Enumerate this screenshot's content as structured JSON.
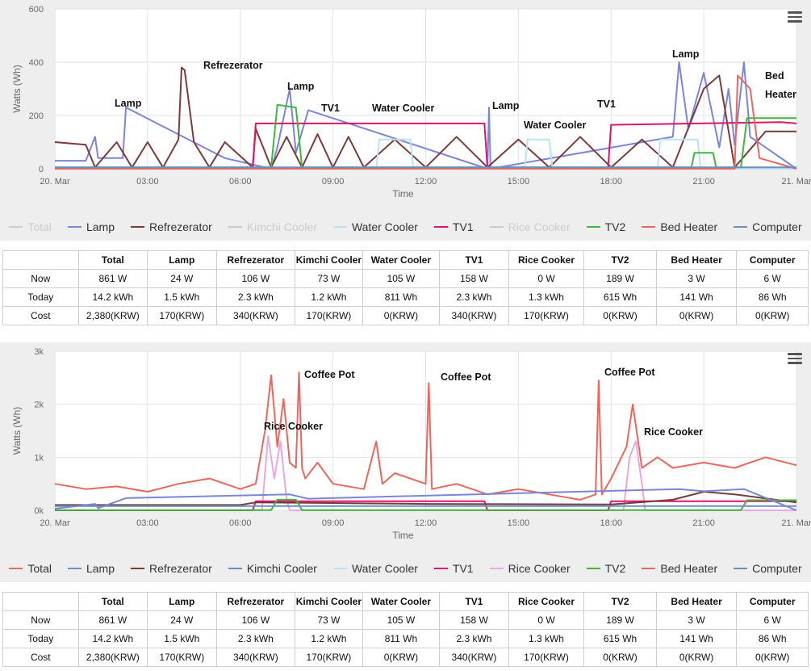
{
  "charts": [
    {
      "ylabel": "Watts (Wh)",
      "xlabel": "Time",
      "y_ticks": [
        "600",
        "400",
        "200",
        "0"
      ],
      "x_ticks": [
        "20. Mar",
        "03:00",
        "06:00",
        "09:00",
        "12:00",
        "15:00",
        "18:00",
        "21:00",
        "21. Mar"
      ],
      "annotations": [
        "Lamp",
        "Refrezerator",
        "Lamp",
        "TV1",
        "Water Cooler",
        "Lamp",
        "Water Cooler",
        "TV1",
        "Lamp",
        "Bed",
        "Heater"
      ],
      "legend": [
        {
          "label": "Total",
          "color": "#cccccc",
          "hidden": true
        },
        {
          "label": "Lamp",
          "color": "#7b86d6",
          "hidden": false
        },
        {
          "label": "Refrezerator",
          "color": "#7b3b3b",
          "hidden": false
        },
        {
          "label": "Kimchi Cooler",
          "color": "#cccccc",
          "hidden": true
        },
        {
          "label": "Water Cooler",
          "color": "#b9e3f0",
          "hidden": false
        },
        {
          "label": "TV1",
          "color": "#e0126b",
          "hidden": false
        },
        {
          "label": "Rice Cooker",
          "color": "#cccccc",
          "hidden": true
        },
        {
          "label": "TV2",
          "color": "#3cb83c",
          "hidden": false
        },
        {
          "label": "Bed Heater",
          "color": "#e8675e",
          "hidden": false
        },
        {
          "label": "Computer",
          "color": "#6a8fbf",
          "hidden": false
        }
      ]
    },
    {
      "ylabel": "Watts (Wh)",
      "xlabel": "Time",
      "y_ticks": [
        "3k",
        "2k",
        "1k",
        "0k"
      ],
      "x_ticks": [
        "20. Mar",
        "03:00",
        "06:00",
        "09:00",
        "12:00",
        "15:00",
        "18:00",
        "21:00",
        "21. Mar"
      ],
      "annotations": [
        "Coffee Pot",
        "Rice Cooker",
        "Coffee Pot",
        "Coffee Pot",
        "Rice Cooker"
      ],
      "legend": [
        {
          "label": "Total",
          "color": "#e8675e",
          "hidden": false
        },
        {
          "label": "Lamp",
          "color": "#7b86d6",
          "hidden": false
        },
        {
          "label": "Refrezerator",
          "color": "#7b3b3b",
          "hidden": false
        },
        {
          "label": "Kimchi Cooler",
          "color": "#6a8fbf",
          "hidden": false
        },
        {
          "label": "Water Cooler",
          "color": "#b9e3f0",
          "hidden": false
        },
        {
          "label": "TV1",
          "color": "#e0126b",
          "hidden": false
        },
        {
          "label": "Rice Cooker",
          "color": "#e8a8e0",
          "hidden": false
        },
        {
          "label": "TV2",
          "color": "#3cb83c",
          "hidden": false
        },
        {
          "label": "Bed Heater",
          "color": "#e8675e",
          "hidden": false
        },
        {
          "label": "Computer",
          "color": "#6a8fbf",
          "hidden": false
        }
      ]
    }
  ],
  "table": {
    "headers": [
      "",
      "Total",
      "Lamp",
      "Refrezerator",
      "Kimchi Cooler",
      "Water Cooler",
      "TV1",
      "Rice Cooker",
      "TV2",
      "Bed Heater",
      "Computer"
    ],
    "rows": [
      [
        "Now",
        "861 W",
        "24 W",
        "106 W",
        "73 W",
        "105 W",
        "158 W",
        "0 W",
        "189 W",
        "3 W",
        "6 W"
      ],
      [
        "Today",
        "14.2 kWh",
        "1.5 kWh",
        "2.3 kWh",
        "1.2 kWh",
        "811 Wh",
        "2.3 kWh",
        "1.3 kWh",
        "615 Wh",
        "141 Wh",
        "86 Wh"
      ],
      [
        "Cost",
        "2,380(KRW)",
        "170(KRW)",
        "340(KRW)",
        "170(KRW)",
        "0(KRW)",
        "340(KRW)",
        "170(KRW)",
        "0(KRW)",
        "0(KRW)",
        "0(KRW)"
      ]
    ]
  },
  "chart_data": [
    {
      "type": "line",
      "ylabel": "Watts (Wh)",
      "xlabel": "Time",
      "x_unit": "hours since 20. Mar 00:00",
      "xlim": [
        0,
        24
      ],
      "ylim": [
        0,
        600
      ],
      "series": [
        {
          "name": "Lamp",
          "color": "#7b86d6",
          "x": [
            0,
            1,
            1.3,
            1.4,
            2.2,
            2.3,
            5.5,
            7.0,
            7.2,
            7.6,
            7.8,
            8.2,
            14.0,
            14.05,
            14.1,
            20.0,
            20.2,
            20.5,
            21.0,
            21.5,
            21.8,
            22.0,
            22.3,
            22.5,
            24
          ],
          "y": [
            30,
            30,
            120,
            40,
            40,
            230,
            40,
            0,
            80,
            300,
            60,
            220,
            0,
            230,
            0,
            120,
            400,
            150,
            360,
            80,
            300,
            90,
            400,
            120,
            0
          ]
        },
        {
          "name": "Refrezerator",
          "color": "#7b3b3b",
          "x": [
            0,
            1.0,
            1.3,
            2.0,
            2.5,
            3.0,
            3.5,
            4.0,
            4.1,
            4.2,
            4.5,
            5.0,
            5.5,
            6.4,
            6.5,
            7.0,
            7.5,
            8.0,
            8.5,
            9.0,
            9.5,
            10.0,
            11.0,
            12.0,
            13.0,
            14.0,
            15.0,
            16.0,
            17.0,
            18.0,
            19.0,
            20.0,
            21.0,
            21.5,
            22.0,
            23.0,
            24
          ],
          "y": [
            100,
            90,
            5,
            100,
            5,
            100,
            5,
            110,
            380,
            370,
            100,
            5,
            100,
            5,
            150,
            5,
            120,
            5,
            130,
            5,
            120,
            5,
            110,
            5,
            120,
            5,
            110,
            5,
            120,
            5,
            110,
            5,
            300,
            350,
            5,
            140,
            140
          ]
        },
        {
          "name": "Water Cooler",
          "color": "#b9e3f0",
          "x": [
            0,
            10.4,
            10.5,
            11.5,
            11.6,
            15.2,
            15.3,
            16.0,
            16.1,
            19.5,
            19.6,
            20.8,
            20.9,
            24
          ],
          "y": [
            0,
            0,
            110,
            110,
            0,
            0,
            110,
            110,
            0,
            0,
            110,
            110,
            0,
            0
          ]
        },
        {
          "name": "TV1",
          "color": "#e0126b",
          "x": [
            0,
            6.4,
            6.5,
            13.9,
            14.0,
            17.9,
            18.0,
            23.5,
            24
          ],
          "y": [
            0,
            0,
            170,
            170,
            0,
            0,
            165,
            175,
            170
          ]
        },
        {
          "name": "TV2",
          "color": "#3cb83c",
          "x": [
            0,
            7.0,
            7.2,
            7.8,
            8.0,
            20.6,
            20.7,
            21.3,
            21.4,
            22.2,
            22.4,
            24
          ],
          "y": [
            5,
            5,
            240,
            230,
            5,
            5,
            60,
            60,
            5,
            5,
            190,
            190
          ]
        },
        {
          "name": "Bed Heater",
          "color": "#e8675e",
          "x": [
            0,
            22.0,
            22.1,
            22.5,
            22.8,
            24
          ],
          "y": [
            0,
            0,
            350,
            300,
            40,
            0
          ]
        },
        {
          "name": "Computer",
          "color": "#6a8fbf",
          "x": [
            0,
            24
          ],
          "y": [
            5,
            5
          ]
        }
      ]
    },
    {
      "type": "line",
      "ylabel": "Watts (Wh)",
      "xlabel": "Time",
      "x_unit": "hours since 20. Mar 00:00",
      "xlim": [
        0,
        24
      ],
      "ylim": [
        0,
        3000
      ],
      "series": [
        {
          "name": "Total",
          "color": "#e8675e",
          "x": [
            0,
            1,
            2,
            3,
            4,
            5,
            6,
            6.5,
            6.8,
            7.0,
            7.2,
            7.4,
            7.6,
            7.8,
            7.9,
            8.0,
            8.1,
            8.5,
            9.0,
            10.0,
            10.4,
            10.6,
            11.0,
            12.0,
            12.1,
            12.2,
            13.0,
            14.0,
            15.0,
            16.0,
            17.0,
            17.5,
            17.6,
            17.7,
            18.0,
            18.5,
            18.7,
            18.8,
            19.0,
            19.5,
            20.0,
            21.0,
            22.0,
            23.0,
            24
          ],
          "y": [
            500,
            400,
            450,
            350,
            500,
            600,
            400,
            500,
            1500,
            2550,
            1200,
            2100,
            900,
            800,
            2600,
            800,
            600,
            900,
            500,
            400,
            1300,
            500,
            700,
            500,
            2400,
            400,
            500,
            300,
            400,
            300,
            200,
            300,
            2450,
            300,
            600,
            1200,
            2000,
            1600,
            800,
            1000,
            800,
            900,
            800,
            1000,
            850
          ]
        },
        {
          "name": "Rice Cooker",
          "color": "#e8a8e0",
          "x": [
            0,
            6.7,
            6.9,
            7.1,
            7.3,
            7.5,
            7.6,
            18.4,
            18.6,
            18.8,
            19.0,
            19.1,
            24
          ],
          "y": [
            0,
            0,
            1400,
            600,
            1300,
            200,
            0,
            0,
            1000,
            1300,
            500,
            0,
            0
          ]
        },
        {
          "name": "TV1",
          "color": "#e0126b",
          "x": [
            0,
            6.4,
            6.5,
            13.9,
            14.0,
            17.9,
            18.0,
            24
          ],
          "y": [
            0,
            0,
            170,
            170,
            0,
            0,
            170,
            170
          ]
        },
        {
          "name": "Refrezerator",
          "color": "#7b3b3b",
          "x": [
            0,
            6,
            6.5,
            12,
            18,
            20,
            21,
            22,
            24
          ],
          "y": [
            100,
            100,
            150,
            120,
            110,
            200,
            350,
            300,
            150
          ]
        },
        {
          "name": "TV2",
          "color": "#3cb83c",
          "x": [
            0,
            7.0,
            7.2,
            7.8,
            8.0,
            22.2,
            22.4,
            24
          ],
          "y": [
            5,
            5,
            200,
            200,
            5,
            5,
            190,
            190
          ]
        },
        {
          "name": "Kimchi Cooler",
          "color": "#6a8fbf",
          "x": [
            0,
            24
          ],
          "y": [
            80,
            80
          ]
        },
        {
          "name": "Lamp",
          "color": "#7b86d6",
          "x": [
            0,
            1.3,
            1.4,
            2.3,
            7.6,
            8.2,
            20.2,
            21.0,
            22.3,
            24
          ],
          "y": [
            30,
            120,
            40,
            230,
            300,
            220,
            400,
            360,
            400,
            0
          ]
        }
      ]
    }
  ]
}
